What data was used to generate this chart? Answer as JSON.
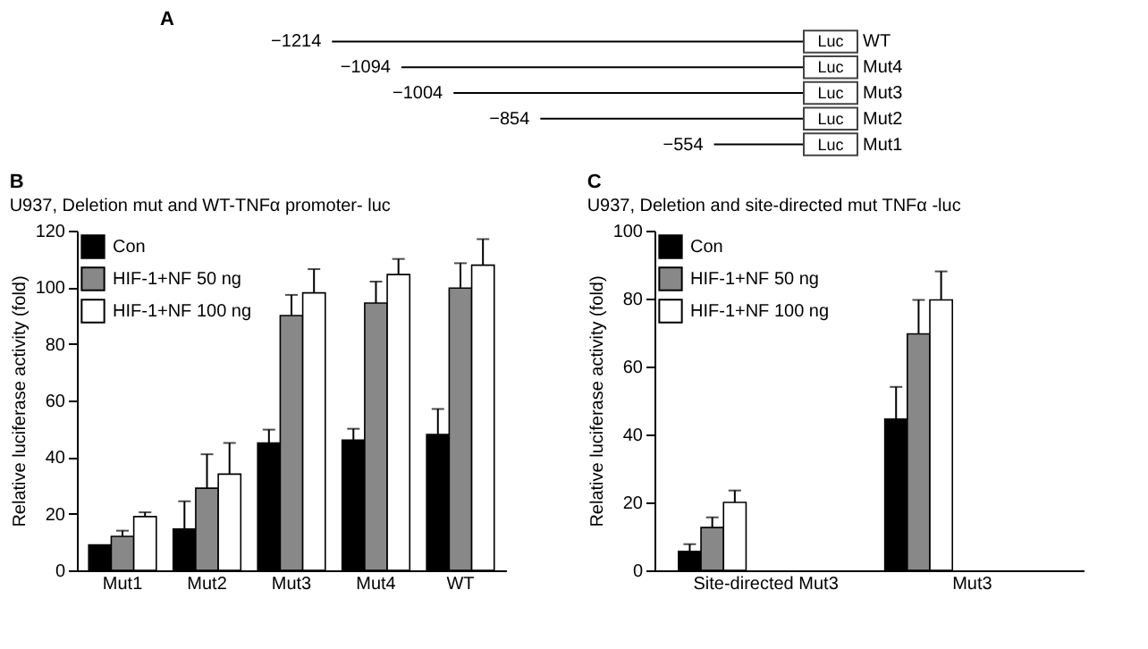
{
  "chart_data": [
    {
      "type": "other",
      "title": "A",
      "categories": [
        "WT",
        "Mut4",
        "Mut3",
        "Mut2",
        "Mut1"
      ],
      "values": [
        -1214,
        -1094,
        -1004,
        -854,
        -554
      ],
      "value_labels": [
        "−1214",
        "−1094",
        "−1004",
        "−854",
        "−554"
      ],
      "annotations": [
        "Luc"
      ]
    },
    {
      "type": "bar",
      "title": "B",
      "subtitle": "U937, Deletion mut and WT-TNFα promoter- luc",
      "ylabel": "Relative luciferase activity (fold)",
      "categories": [
        "Mut1",
        "Mut2",
        "Mut3",
        "Mut4",
        "WT"
      ],
      "ylim": [
        0,
        120
      ],
      "yticks": [
        0,
        20,
        40,
        60,
        80,
        100,
        120
      ],
      "legend": "top left",
      "grid": false,
      "series": [
        {
          "name": "Con",
          "color": "#000000",
          "values": [
            9,
            14.6,
            45,
            46,
            48
          ],
          "errors": [
            null,
            [
              14.6,
              24.4
            ],
            [
              45,
              49.7
            ],
            [
              46,
              50
            ],
            [
              48,
              57
            ]
          ]
        },
        {
          "name": "HIF-1+NF 50 ng",
          "color": "#888888",
          "values": [
            12,
            29,
            90,
            94.4,
            99.7
          ],
          "errors": [
            [
              12,
              14
            ],
            [
              29,
              41
            ],
            [
              90,
              97.3
            ],
            [
              94.4,
              102
            ],
            [
              99.7,
              108.5
            ]
          ]
        },
        {
          "name": "HIF-1+NF 100 ng",
          "color": "#ffffff",
          "values": [
            19,
            34,
            98,
            104.5,
            107.8
          ],
          "errors": [
            [
              19,
              20.5
            ],
            [
              34,
              45
            ],
            [
              98,
              106.4
            ],
            [
              104.5,
              110
            ],
            [
              107.8,
              117
            ]
          ]
        }
      ]
    },
    {
      "type": "bar",
      "title": "C",
      "subtitle": "U937, Deletion and site-directed mut TNFα -luc",
      "ylabel": "Relative luciferase activity (fold)",
      "categories": [
        "Site-directed Mut3",
        "Mut3"
      ],
      "ylim": [
        0,
        100
      ],
      "yticks": [
        0,
        20,
        40,
        60,
        80,
        100
      ],
      "legend": "top left",
      "grid": false,
      "series": [
        {
          "name": "Con",
          "color": "#000000",
          "values": [
            5.6,
            44.5
          ],
          "errors": [
            [
              5.6,
              7.7
            ],
            [
              44.5,
              54
            ]
          ]
        },
        {
          "name": "HIF-1+NF 50 ng",
          "color": "#888888",
          "values": [
            12.6,
            69.6
          ],
          "errors": [
            [
              12.6,
              15.6
            ],
            [
              69.6,
              79.6
            ]
          ]
        },
        {
          "name": "HIF-1+NF 100 ng",
          "color": "#ffffff",
          "values": [
            20,
            79.6
          ],
          "errors": [
            [
              20,
              23.5
            ],
            [
              79.6,
              88
            ]
          ]
        }
      ]
    }
  ]
}
